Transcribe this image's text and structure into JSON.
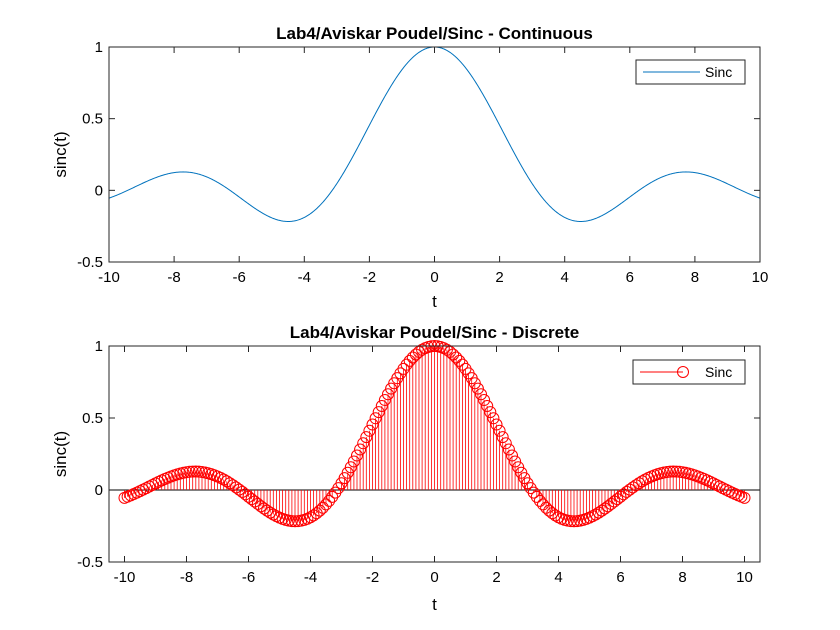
{
  "chart_data": [
    {
      "type": "line",
      "title": "Lab4/Aviskar Poudel/Sinc - Continuous",
      "xlabel": "t",
      "ylabel": "sinc(t)",
      "xlim": [
        -10,
        10
      ],
      "ylim": [
        -0.5,
        1
      ],
      "xticks": [
        "-10",
        "-8",
        "-6",
        "-4",
        "-2",
        "0",
        "2",
        "4",
        "6",
        "8",
        "10"
      ],
      "yticks": [
        "-0.5",
        "0",
        "0.5",
        "1"
      ],
      "function": "sin(t)/t",
      "grid": false,
      "legend": {
        "position": "top-right",
        "entries": [
          "Sinc"
        ]
      },
      "series": [
        {
          "name": "Sinc",
          "color": "#0072BD",
          "style": "line"
        }
      ]
    },
    {
      "type": "scatter",
      "title": "Lab4/Aviskar Poudel/Sinc - Discrete",
      "xlabel": "t",
      "ylabel": "sinc(t)",
      "xlim": [
        -10.5,
        10.5
      ],
      "ylim": [
        -0.5,
        1
      ],
      "xticks": [
        "-10",
        "-8",
        "-6",
        "-4",
        "-2",
        "0",
        "2",
        "4",
        "6",
        "8",
        "10"
      ],
      "yticks": [
        "-0.5",
        "0",
        "0.5",
        "1"
      ],
      "function": "sin(t)/t",
      "sample_range": [
        -10,
        10
      ],
      "sample_step": 0.1,
      "grid": false,
      "legend": {
        "position": "top-right",
        "entries": [
          "Sinc"
        ]
      },
      "series": [
        {
          "name": "Sinc",
          "color": "#FF0000",
          "style": "stem-circle"
        }
      ]
    }
  ]
}
